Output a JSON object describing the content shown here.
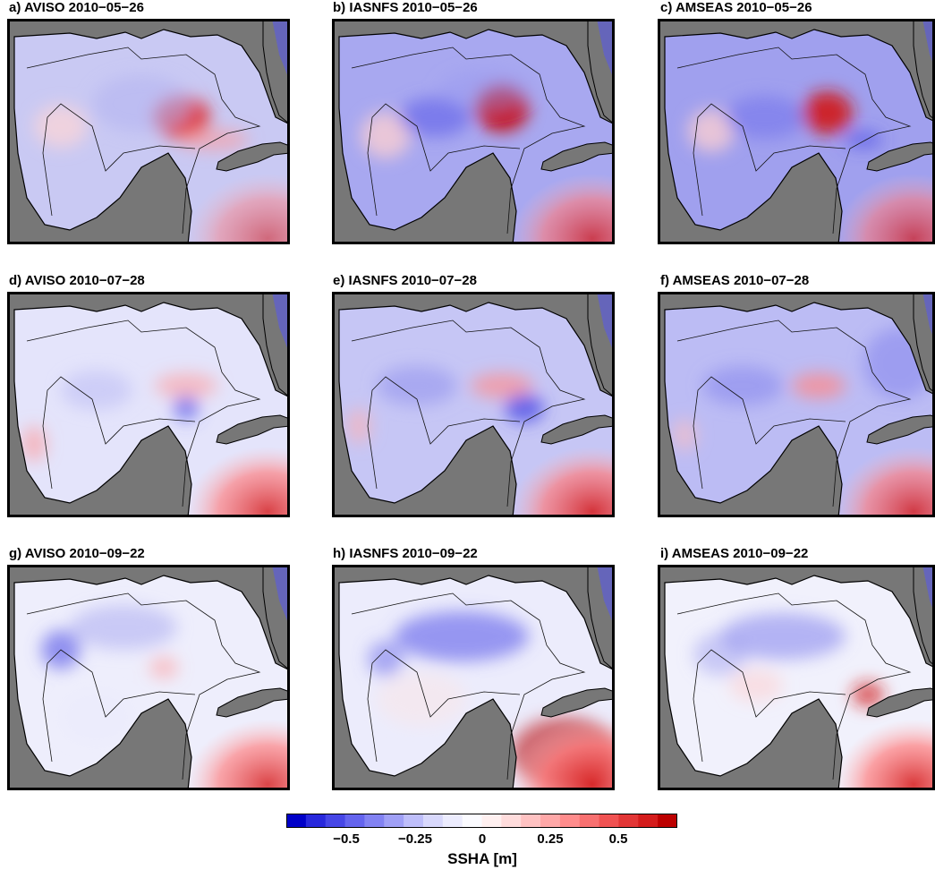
{
  "panels": [
    {
      "title": "a) AVISO 2010−05−26"
    },
    {
      "title": "b) IASNFS 2010−05−26"
    },
    {
      "title": "c) AMSEAS 2010−05−26"
    },
    {
      "title": "d) AVISO 2010−07−28"
    },
    {
      "title": "e) IASNFS 2010−07−28"
    },
    {
      "title": "f) AMSEAS 2010−07−28"
    },
    {
      "title": "g) AVISO 2010−09−22"
    },
    {
      "title": "h) IASNFS 2010−09−22"
    },
    {
      "title": "i) AMSEAS 2010−09−22"
    }
  ],
  "colorbar": {
    "label": "SSHA [m]",
    "ticks": [
      "−0.5",
      "−0.25",
      "0",
      "0.25",
      "0.5"
    ],
    "tick_values": [
      -0.5,
      -0.25,
      0,
      0.25,
      0.5
    ],
    "range": [
      -0.7,
      0.7
    ],
    "colors": [
      "#0000c8",
      "#2828dc",
      "#4646e6",
      "#6464ee",
      "#8282f2",
      "#a0a0f6",
      "#bebefa",
      "#d8d8fc",
      "#ececfe",
      "#fbfbff",
      "#fff0f0",
      "#ffdcdc",
      "#ffc2c2",
      "#ffa8a8",
      "#ff8c8c",
      "#f87070",
      "#f05252",
      "#e23636",
      "#d41c1c",
      "#bc0000"
    ]
  },
  "colors": {
    "land": "#777777",
    "blue_anomaly": "#5a5ae8",
    "red_anomaly": "#e02a2a"
  }
}
